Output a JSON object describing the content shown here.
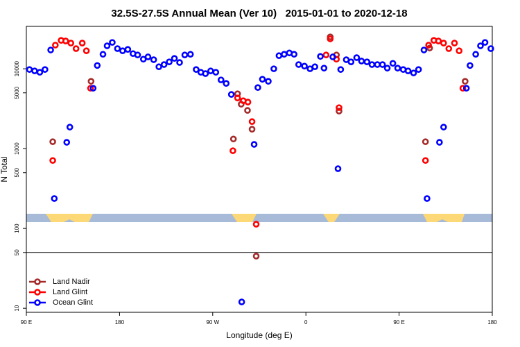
{
  "chart_data": {
    "type": "scatter",
    "title": "32.5S-27.5S Annual Mean (Ver 10)   2015-01-01 to 2020-12-18",
    "x_label": "Longitude (deg E)",
    "y_label": "N Total",
    "log_y": true,
    "legend": "lower left",
    "hline": 50,
    "xlim": [
      90,
      540
    ],
    "xticks": [
      {
        "value": 90,
        "label": "90 E"
      },
      180,
      {
        "value": 270,
        "label": "90 W"
      },
      {
        "value": 360,
        "label": "0"
      },
      {
        "value": 450,
        "label": "90 E"
      },
      {
        "value": 540,
        "label": "180"
      }
    ],
    "ylim": [
      8.9,
      34000
    ],
    "yticks": [
      10,
      50,
      100,
      500,
      1000,
      5000,
      10000
    ],
    "series": [
      {
        "name": "Land Nadir",
        "color": "#a52a2a",
        "x": [
          115.5,
          152.5,
          290,
          294,
          297.5,
          303.6,
          308,
          312,
          383.5,
          389.5,
          392,
          475.5,
          479.5,
          513.8
        ],
        "values": [
          1220,
          6970,
          1320,
          4860,
          3600,
          3010,
          1750,
          45,
          25100,
          14900,
          2950,
          1220,
          18200,
          6970
        ]
      },
      {
        "name": "Land Glint",
        "color": "#ff0000",
        "x": [
          115.5,
          118,
          123.6,
          128,
          133,
          138,
          144,
          148,
          152,
          289.5,
          294,
          299.5,
          304,
          308,
          312,
          379.5,
          383.5,
          389.5,
          392,
          475.5,
          478.5,
          483.6,
          488,
          493,
          498,
          503.5,
          508,
          511.6
        ],
        "values": [
          710,
          19800,
          22700,
          22300,
          21000,
          17900,
          21000,
          16800,
          5710,
          940,
          4310,
          3980,
          3830,
          2180,
          113,
          14900,
          23700,
          13200,
          3260,
          710,
          19800,
          22700,
          22300,
          21000,
          17900,
          21000,
          16800,
          5710
        ]
      },
      {
        "name": "Ocean Glint",
        "color": "#0000ff",
        "x": [
          93,
          98,
          103,
          108,
          113.5,
          117,
          129,
          132,
          154.5,
          158.5,
          164,
          168,
          173,
          178,
          183,
          188,
          193,
          197.5,
          203,
          207.5,
          213,
          218,
          223,
          228,
          233,
          238,
          243,
          248.5,
          254,
          258.5,
          263,
          268,
          273,
          278,
          283,
          288,
          298,
          310,
          313.6,
          318,
          323.7,
          329,
          334,
          339,
          344,
          348.6,
          353,
          358.6,
          364,
          368.7,
          374,
          377.5,
          386,
          391,
          393.6,
          399,
          403.6,
          409,
          413.7,
          419,
          423.8,
          429,
          434,
          438.6,
          444,
          448.6,
          454,
          458.7,
          464,
          468.8,
          474,
          477,
          489,
          493,
          515,
          518.5,
          524,
          528.6,
          533,
          538.6
        ],
        "values": [
          9800,
          9400,
          9050,
          9800,
          17200,
          237,
          1200,
          1860,
          5710,
          11000,
          15200,
          19400,
          21400,
          17900,
          16800,
          17500,
          15500,
          14900,
          13200,
          14100,
          13000,
          10600,
          11300,
          12200,
          13500,
          12000,
          14900,
          15200,
          9800,
          9050,
          8700,
          9400,
          9050,
          7260,
          6560,
          4770,
          12,
          1130,
          5820,
          7400,
          6970,
          10000,
          14600,
          15200,
          15800,
          15200,
          11300,
          10800,
          10000,
          10600,
          14300,
          10200,
          14100,
          560,
          9800,
          13000,
          12200,
          13800,
          12500,
          12200,
          11300,
          11300,
          11300,
          10200,
          11700,
          10200,
          9800,
          9400,
          8870,
          9800,
          17200,
          237,
          1200,
          1860,
          5710,
          11000,
          15200,
          19400,
          21400,
          17900
        ]
      }
    ]
  }
}
